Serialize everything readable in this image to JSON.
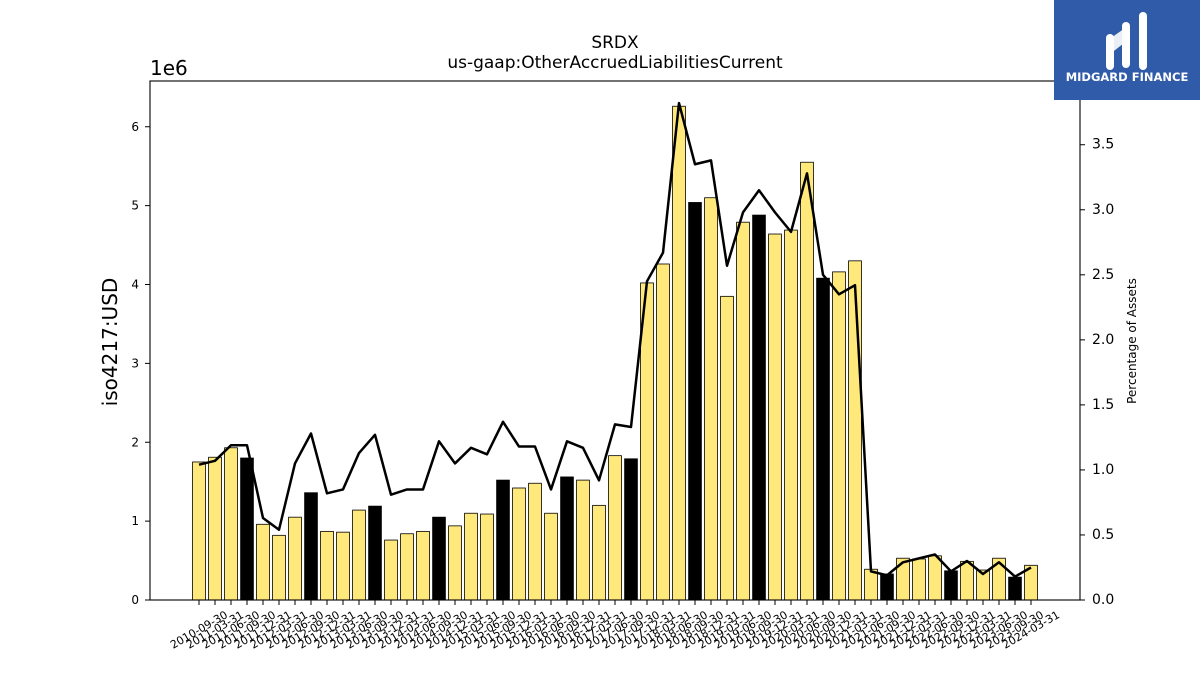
{
  "logo": {
    "brand": "MIDGARD FINANCE",
    "background": "#2f5ba9",
    "icon": "midgard-m-logo-icon"
  },
  "chart_data": {
    "type": "bar",
    "title": "SRDX",
    "subtitle": "us-gaap:OtherAccruedLiabilitiesCurrent",
    "xlabel": "",
    "ylabel": "iso4217:USD",
    "y_offset_label": "1e6",
    "y2label": "Percentage of Assets",
    "categories": [
      "2010-09-30",
      "2011-03-31",
      "2011-06-30",
      "2011-09-30",
      "2011-12-31",
      "2012-03-31",
      "2012-06-30",
      "2012-09-30",
      "2012-12-31",
      "2013-03-31",
      "2013-06-30",
      "2013-09-30",
      "2013-12-31",
      "2014-03-31",
      "2014-06-30",
      "2014-09-30",
      "2014-12-31",
      "2015-03-31",
      "2015-06-30",
      "2015-09-30",
      "2015-12-31",
      "2016-03-31",
      "2016-06-30",
      "2016-09-30",
      "2016-12-31",
      "2017-03-31",
      "2017-06-30",
      "2017-09-30",
      "2017-12-31",
      "2018-03-31",
      "2018-06-30",
      "2018-09-30",
      "2018-12-31",
      "2019-03-31",
      "2019-06-30",
      "2019-09-30",
      "2019-12-31",
      "2020-03-31",
      "2020-06-30",
      "2020-09-30",
      "2020-12-31",
      "2021-03-31",
      "2021-06-30",
      "2021-09-30",
      "2021-12-31",
      "2022-03-31",
      "2022-06-30",
      "2022-09-30",
      "2022-12-31",
      "2023-03-31",
      "2023-06-30",
      "2023-09-30",
      "2024-03-31"
    ],
    "series": [
      {
        "type": "bar",
        "secondary_axis": false,
        "values": [
          1750000,
          1810000,
          1930000,
          1800000,
          960000,
          820000,
          1050000,
          1360000,
          870000,
          860000,
          1140000,
          1190000,
          760000,
          840000,
          870000,
          1050000,
          940000,
          1100000,
          1090000,
          1520000,
          1420000,
          1480000,
          1100000,
          1560000,
          1520000,
          1200000,
          1830000,
          1790000,
          4020000,
          4260000,
          6260000,
          5040000,
          5100000,
          3850000,
          4790000,
          4880000,
          4640000,
          4690000,
          5550000,
          4080000,
          4160000,
          4300000,
          390000,
          330000,
          530000,
          520000,
          560000,
          370000,
          490000,
          380000,
          530000,
          290000,
          440000
        ],
        "colors": [
          "#ffe97a",
          "#ffe97a",
          "#ffe97a",
          "#000000",
          "#ffe97a",
          "#ffe97a",
          "#ffe97a",
          "#000000",
          "#ffe97a",
          "#ffe97a",
          "#ffe97a",
          "#000000",
          "#ffe97a",
          "#ffe97a",
          "#ffe97a",
          "#000000",
          "#ffe97a",
          "#ffe97a",
          "#ffe97a",
          "#000000",
          "#ffe97a",
          "#ffe97a",
          "#ffe97a",
          "#000000",
          "#ffe97a",
          "#ffe97a",
          "#ffe97a",
          "#000000",
          "#ffe97a",
          "#ffe97a",
          "#ffe97a",
          "#000000",
          "#ffe97a",
          "#ffe97a",
          "#ffe97a",
          "#000000",
          "#ffe97a",
          "#ffe97a",
          "#ffe97a",
          "#000000",
          "#ffe97a",
          "#ffe97a",
          "#ffe97a",
          "#000000",
          "#ffe97a",
          "#ffe97a",
          "#ffe97a",
          "#000000",
          "#ffe97a",
          "#ffe97a",
          "#ffe97a",
          "#000000",
          "#ffe97a"
        ]
      },
      {
        "type": "line",
        "secondary_axis": true,
        "color": "#000000",
        "values": [
          1.04,
          1.07,
          1.19,
          1.19,
          0.63,
          0.54,
          1.05,
          1.28,
          0.82,
          0.85,
          1.13,
          1.27,
          0.81,
          0.85,
          0.85,
          1.22,
          1.05,
          1.17,
          1.12,
          1.37,
          1.18,
          1.18,
          0.85,
          1.22,
          1.17,
          0.92,
          1.35,
          1.33,
          2.45,
          2.67,
          3.82,
          3.35,
          3.38,
          2.57,
          2.98,
          3.15,
          2.98,
          2.83,
          3.28,
          2.5,
          2.35,
          2.42,
          0.22,
          0.19,
          0.29,
          0.32,
          0.35,
          0.22,
          0.3,
          0.2,
          0.29,
          0.18,
          0.25
        ]
      }
    ],
    "ylim": [
      0,
      6580000
    ],
    "y2lim": [
      0,
      3.99
    ],
    "y_ticks": [
      "0",
      "1",
      "2",
      "3",
      "4",
      "5",
      "6"
    ],
    "y2_ticks": [
      "0.0",
      "0.5",
      "1.0",
      "1.5",
      "2.0",
      "2.5",
      "3.0",
      "3.5"
    ],
    "grid": false,
    "legend": false
  }
}
